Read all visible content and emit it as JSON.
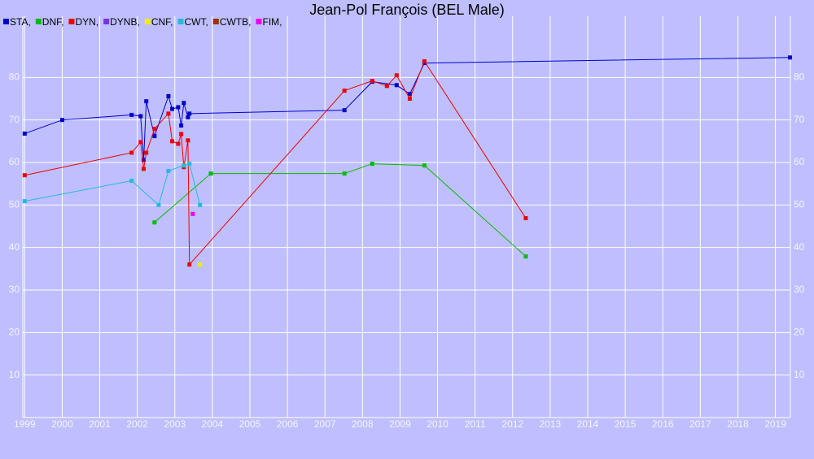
{
  "chart_data": {
    "type": "line",
    "title": "Jean-Pol François (BEL Male)",
    "xlim": [
      1998.95,
      2019.4
    ],
    "ylim": [
      0,
      94.4
    ],
    "xticks": [
      1999,
      2000,
      2001,
      2002,
      2003,
      2004,
      2005,
      2006,
      2007,
      2008,
      2009,
      2010,
      2011,
      2012,
      2013,
      2014,
      2015,
      2016,
      2017,
      2018,
      2019
    ],
    "yticks": [
      10,
      20,
      30,
      40,
      50,
      60,
      70,
      80
    ],
    "grid": true,
    "series": [
      {
        "name": "STA,",
        "color": "#0000cc",
        "x": [
          1999.0,
          2000.0,
          2001.85,
          2002.09,
          2002.17,
          2002.24,
          2002.46,
          2002.83,
          2002.93,
          2003.09,
          2003.17,
          2003.24,
          2003.35,
          2003.39,
          2007.52,
          2008.26,
          2008.91,
          2009.26,
          2009.65,
          2019.39
        ],
        "values": [
          66.8,
          70.0,
          71.2,
          70.9,
          60.6,
          74.4,
          66.2,
          75.6,
          72.6,
          73.0,
          68.7,
          74.0,
          70.6,
          71.5,
          72.3,
          79.0,
          78.2,
          76.1,
          83.4,
          84.7
        ]
      },
      {
        "name": "DNF,",
        "color": "#00bb00",
        "x": [
          2002.46,
          2003.96,
          2007.52,
          2008.26,
          2009.65,
          2012.35
        ],
        "values": [
          45.9,
          57.4,
          57.4,
          59.7,
          59.3,
          37.9
        ]
      },
      {
        "name": "DYN,",
        "color": "#ee0000",
        "x": [
          1999.0,
          2001.85,
          2002.09,
          2002.17,
          2002.24,
          2002.46,
          2002.83,
          2002.93,
          2003.09,
          2003.17,
          2003.24,
          2003.35,
          2003.39,
          2007.52,
          2008.26,
          2008.65,
          2008.91,
          2009.26,
          2009.65,
          2012.35
        ],
        "values": [
          57.0,
          62.3,
          64.8,
          58.5,
          62.3,
          67.9,
          71.5,
          65.0,
          64.4,
          66.7,
          58.9,
          65.2,
          36.0,
          76.9,
          79.2,
          78.0,
          80.5,
          75.0,
          83.8,
          46.9
        ]
      },
      {
        "name": "DYNB,",
        "color": "#7733dd",
        "x": [],
        "values": []
      },
      {
        "name": "CNF,",
        "color": "#eeee00",
        "x": [
          2003.67
        ],
        "values": [
          36.0
        ]
      },
      {
        "name": "CWT,",
        "color": "#22bbdd",
        "x": [
          1999.0,
          2001.85,
          2002.57,
          2002.83,
          2003.24,
          2003.39,
          2003.67
        ],
        "values": [
          50.9,
          55.7,
          50.0,
          58.0,
          59.3,
          59.7,
          50.0
        ]
      },
      {
        "name": "CWTB,",
        "color": "#993300",
        "x": [],
        "values": []
      },
      {
        "name": "FIM,",
        "color": "#ee00ee",
        "x": [
          2003.48
        ],
        "values": [
          47.9
        ]
      }
    ]
  }
}
